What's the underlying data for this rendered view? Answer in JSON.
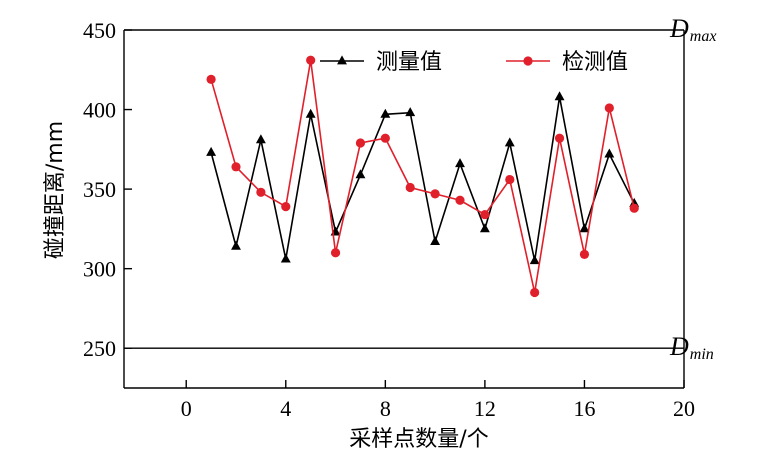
{
  "chart_data": {
    "type": "line",
    "xlabel": "采样点数量/个",
    "ylabel": "碰撞距离/mm",
    "xlim": [
      -2.5,
      20
    ],
    "ylim": [
      225,
      450
    ],
    "xticks": [
      0,
      4,
      8,
      12,
      16,
      20
    ],
    "yticks": [
      250,
      300,
      350,
      400,
      450
    ],
    "grid": false,
    "legend_position": "top",
    "x": [
      1,
      2,
      3,
      4,
      5,
      6,
      7,
      8,
      9,
      10,
      11,
      12,
      13,
      14,
      15,
      16,
      17,
      18
    ],
    "series": [
      {
        "name": "测量值",
        "color": "#000000",
        "marker": "triangle",
        "values": [
          373,
          314,
          381,
          306,
          397,
          323,
          359,
          397,
          398,
          317,
          366,
          325,
          379,
          305,
          408,
          325,
          372,
          341
        ]
      },
      {
        "name": "检测值",
        "color": "#e0202b",
        "marker": "circle",
        "values": [
          419,
          364,
          348,
          339,
          431,
          310,
          379,
          382,
          351,
          347,
          343,
          334,
          356,
          285,
          382,
          309,
          401,
          338
        ]
      }
    ],
    "reference_lines": [
      {
        "y": 450,
        "label": "D",
        "sub": "max"
      },
      {
        "y": 250,
        "label": "D",
        "sub": "min"
      }
    ]
  }
}
